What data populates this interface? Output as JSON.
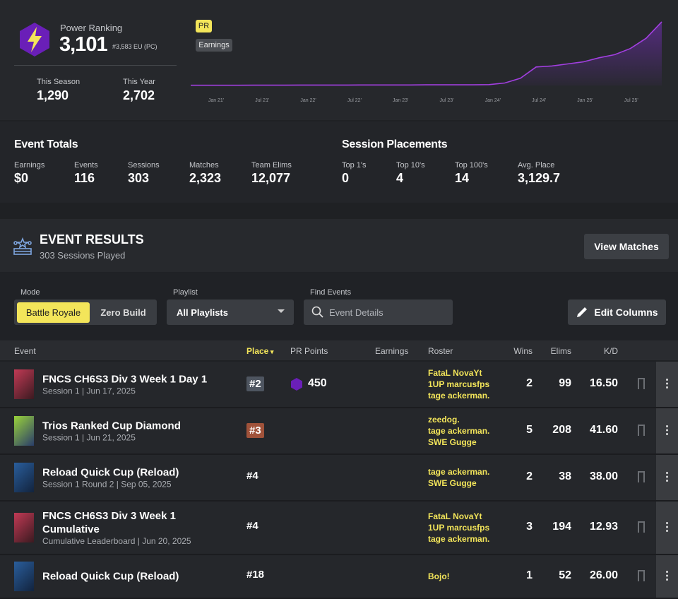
{
  "header": {
    "label": "Power Ranking",
    "value": "3,101",
    "rank": "#3,583 EU (PC)",
    "stats": [
      {
        "label": "This Season",
        "value": "1,290"
      },
      {
        "label": "This Year",
        "value": "2,702"
      }
    ]
  },
  "chart": {
    "tags": [
      "PR",
      "Earnings"
    ],
    "x_labels": [
      "Jan 21'",
      "Jul 21'",
      "Jan 22'",
      "Jul 22'",
      "Jan 23'",
      "Jul 23'",
      "Jan 24'",
      "Jul 24'",
      "Jan 25'",
      "Jul 25'"
    ],
    "values": [
      10,
      10,
      10,
      10,
      15,
      15,
      15,
      20,
      20,
      20,
      20,
      25,
      25,
      25,
      25,
      30,
      30,
      30,
      30,
      40,
      120,
      350,
      900,
      950,
      1050,
      1150,
      1350,
      1500,
      1800,
      2300,
      3101
    ],
    "ylim": [
      0,
      3200
    ],
    "color": "#a23fe0"
  },
  "event_totals": {
    "title": "Event Totals",
    "stats": [
      {
        "label": "Earnings",
        "value": "$0"
      },
      {
        "label": "Events",
        "value": "116"
      },
      {
        "label": "Sessions",
        "value": "303"
      },
      {
        "label": "Matches",
        "value": "2,323"
      },
      {
        "label": "Team Elims",
        "value": "12,077"
      }
    ]
  },
  "session_placements": {
    "title": "Session Placements",
    "stats": [
      {
        "label": "Top 1's",
        "value": "0"
      },
      {
        "label": "Top 10's",
        "value": "4"
      },
      {
        "label": "Top 100's",
        "value": "14"
      },
      {
        "label": "Avg. Place",
        "value": "3,129.7"
      }
    ]
  },
  "event_results": {
    "title": "EVENT RESULTS",
    "subtitle": "303 Sessions Played",
    "button": "View Matches"
  },
  "filters": {
    "mode_label": "Mode",
    "modes": [
      "Battle Royale",
      "Zero Build"
    ],
    "playlist_label": "Playlist",
    "playlist": "All Playlists",
    "find_label": "Find Events",
    "find_placeholder": "Event Details",
    "edit": "Edit Columns"
  },
  "table": {
    "columns": [
      "Event",
      "Place",
      "PR Points",
      "Earnings",
      "Roster",
      "Wins",
      "Elims",
      "K/D"
    ],
    "rows": [
      {
        "event": "FNCS CH6S3 Div 3 Week 1 Day 1",
        "detail": "Session 1 | Jun 17, 2025",
        "place": "#2",
        "pr_points": "450",
        "roster": [
          "FataL NovaYt",
          "1UP marcusfps",
          "tage ackerman."
        ],
        "wins": "2",
        "elims": "99",
        "kd": "16.50"
      },
      {
        "event": "Trios Ranked Cup Diamond",
        "detail": "Session 1 | Jun 21, 2025",
        "place": "#3",
        "roster": [
          "zeedog.",
          "tage ackerman.",
          "SWE Gugge"
        ],
        "wins": "5",
        "elims": "208",
        "kd": "41.60"
      },
      {
        "event": "Reload Quick Cup (Reload)",
        "detail": "Session 1 Round 2 | Sep 05, 2025",
        "place": "#4",
        "roster": [
          "tage ackerman.",
          "SWE Gugge"
        ],
        "wins": "2",
        "elims": "38",
        "kd": "38.00"
      },
      {
        "event": "FNCS CH6S3 Div 3 Week 1 Cumulative",
        "detail": "Cumulative Leaderboard | Jun 20, 2025",
        "place": "#4",
        "roster": [
          "FataL NovaYt",
          "1UP marcusfps",
          "tage ackerman."
        ],
        "wins": "3",
        "elims": "194",
        "kd": "12.93"
      },
      {
        "event": "Reload Quick Cup (Reload)",
        "place": "#18",
        "roster": [
          "Bojo!"
        ],
        "wins": "1",
        "elims": "52",
        "kd": "26.00"
      }
    ]
  }
}
